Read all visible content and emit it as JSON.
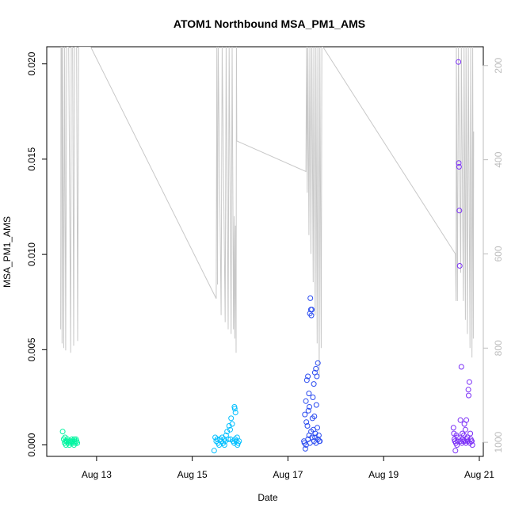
{
  "chart_data": {
    "type": "scatter",
    "title": "ATOM1 Northbound MSA_PM1_AMS",
    "xlabel": "Date",
    "ylabel": "MSA_PM1_AMS",
    "xlim": [
      "2019-08-11T23:00",
      "2019-08-21T02:00"
    ],
    "ylim": [
      -0.0006,
      0.0209
    ],
    "x_ticks": [
      "Aug 13",
      "Aug 15",
      "Aug 17",
      "Aug 19",
      "Aug 21"
    ],
    "x_tick_values": [
      "2019-08-13",
      "2019-08-15",
      "2019-08-17",
      "2019-08-19",
      "2019-08-21"
    ],
    "y_ticks": [
      "0.000",
      "0.005",
      "0.010",
      "0.015",
      "0.020"
    ],
    "y_tick_values": [
      0.0,
      0.005,
      0.01,
      0.015,
      0.02
    ],
    "y2_axis": {
      "ticks": [
        "200",
        "400",
        "600",
        "800",
        "1000"
      ],
      "tick_values": [
        200,
        400,
        600,
        800,
        1000
      ],
      "reversed": true,
      "range": [
        1030,
        160
      ],
      "color": "#bdbdbd"
    },
    "grid": false,
    "legend": "none",
    "series": [
      {
        "color": "#00f5a0",
        "points": [
          [
            "2019-08-12T07:00",
            0.0007
          ],
          [
            "2019-08-12T07:30",
            0.0003
          ],
          [
            "2019-08-12T08:00",
            0.0001
          ],
          [
            "2019-08-12T08:20",
            0.0002
          ],
          [
            "2019-08-12T08:40",
            0.0
          ],
          [
            "2019-08-12T09:00",
            0.0002
          ],
          [
            "2019-08-12T09:20",
            0.0003
          ],
          [
            "2019-08-12T09:40",
            0.0001
          ],
          [
            "2019-08-12T10:00",
            0.0002
          ],
          [
            "2019-08-12T10:20",
            0.0
          ],
          [
            "2019-08-12T10:40",
            0.0002
          ],
          [
            "2019-08-12T11:00",
            0.0001
          ],
          [
            "2019-08-12T11:20",
            0.0002
          ],
          [
            "2019-08-12T11:40",
            0.0003
          ],
          [
            "2019-08-12T12:00",
            0.0001
          ],
          [
            "2019-08-12T12:20",
            0.0002
          ],
          [
            "2019-08-12T12:40",
            0.0
          ],
          [
            "2019-08-12T13:00",
            0.0002
          ],
          [
            "2019-08-12T13:20",
            0.0001
          ],
          [
            "2019-08-12T13:40",
            0.0003
          ],
          [
            "2019-08-12T14:00",
            0.0002
          ],
          [
            "2019-08-12T14:20",
            0.0001
          ],
          [
            "2019-08-12T08:10",
            0.0004
          ],
          [
            "2019-08-12T12:50",
            0.0003
          ]
        ]
      },
      {
        "color": "#00bfff",
        "points": [
          [
            "2019-08-15T11:00",
            -0.0003
          ],
          [
            "2019-08-15T11:30",
            0.0004
          ],
          [
            "2019-08-15T12:00",
            0.0002
          ],
          [
            "2019-08-15T12:30",
            0.0003
          ],
          [
            "2019-08-15T13:00",
            0.0001
          ],
          [
            "2019-08-15T13:30",
            0.0
          ],
          [
            "2019-08-15T14:00",
            0.0003
          ],
          [
            "2019-08-15T14:30",
            0.0002
          ],
          [
            "2019-08-15T15:00",
            0.0004
          ],
          [
            "2019-08-15T15:30",
            0.0001
          ],
          [
            "2019-08-15T16:00",
            0.0003
          ],
          [
            "2019-08-15T16:30",
            0.0002
          ],
          [
            "2019-08-15T17:00",
            0.0005
          ],
          [
            "2019-08-15T17:30",
            0.0007
          ],
          [
            "2019-08-15T18:00",
            0.0003
          ],
          [
            "2019-08-15T18:30",
            0.001
          ],
          [
            "2019-08-15T19:00",
            0.0008
          ],
          [
            "2019-08-15T19:30",
            0.0014
          ],
          [
            "2019-08-15T20:00",
            0.0011
          ],
          [
            "2019-08-15T20:30",
            0.0002
          ],
          [
            "2019-08-15T21:00",
            0.0001
          ],
          [
            "2019-08-15T21:30",
            0.0003
          ],
          [
            "2019-08-15T22:00",
            0.0002
          ],
          [
            "2019-08-15T22:30",
            0.0004
          ],
          [
            "2019-08-15T23:00",
            0.0001
          ],
          [
            "2019-08-15T23:30",
            0.0002
          ],
          [
            "2019-08-15T21:10",
            0.002
          ],
          [
            "2019-08-15T21:20",
            0.0019
          ],
          [
            "2019-08-15T21:40",
            0.0017
          ],
          [
            "2019-08-15T16:10",
            0.0
          ],
          [
            "2019-08-15T19:10",
            0.0003
          ],
          [
            "2019-08-15T22:40",
            0.0
          ]
        ]
      },
      {
        "color": "#2a4bf0",
        "points": [
          [
            "2019-08-17T08:00",
            0.0002
          ],
          [
            "2019-08-17T08:30",
            0.0016
          ],
          [
            "2019-08-17T09:00",
            0.0023
          ],
          [
            "2019-08-17T09:30",
            0.0034
          ],
          [
            "2019-08-17T10:00",
            0.0036
          ],
          [
            "2019-08-17T10:30",
            0.0027
          ],
          [
            "2019-08-17T11:00",
            0.0069
          ],
          [
            "2019-08-17T11:15",
            0.0077
          ],
          [
            "2019-08-17T11:30",
            0.0071
          ],
          [
            "2019-08-17T11:45",
            0.0068
          ],
          [
            "2019-08-17T12:00",
            0.0071
          ],
          [
            "2019-08-17T12:30",
            0.0025
          ],
          [
            "2019-08-17T13:00",
            0.0032
          ],
          [
            "2019-08-17T13:30",
            0.0038
          ],
          [
            "2019-08-17T14:00",
            0.004
          ],
          [
            "2019-08-17T14:30",
            0.0036
          ],
          [
            "2019-08-17T15:00",
            0.0043
          ],
          [
            "2019-08-17T15:30",
            0.0005
          ],
          [
            "2019-08-17T16:00",
            0.0002
          ],
          [
            "2019-08-17T09:15",
            0.0012
          ],
          [
            "2019-08-17T09:45",
            0.001
          ],
          [
            "2019-08-17T10:15",
            0.0018
          ],
          [
            "2019-08-17T10:45",
            0.002
          ],
          [
            "2019-08-17T12:15",
            0.0014
          ],
          [
            "2019-08-17T12:45",
            0.0008
          ],
          [
            "2019-08-17T13:15",
            0.0015
          ],
          [
            "2019-08-17T13:45",
            0.0006
          ],
          [
            "2019-08-17T14:15",
            0.0021
          ],
          [
            "2019-08-17T14:45",
            0.0009
          ],
          [
            "2019-08-17T08:15",
            0.0001
          ],
          [
            "2019-08-17T08:45",
            -0.0002
          ],
          [
            "2019-08-17T09:05",
            0.0
          ],
          [
            "2019-08-17T10:05",
            0.0003
          ],
          [
            "2019-08-17T11:05",
            0.0001
          ],
          [
            "2019-08-17T12:05",
            0.0004
          ],
          [
            "2019-08-17T13:05",
            0.0002
          ],
          [
            "2019-08-17T14:05",
            0.0001
          ],
          [
            "2019-08-17T15:05",
            0.0003
          ],
          [
            "2019-08-17T15:45",
            0.0002
          ],
          [
            "2019-08-17T10:35",
            0.0005
          ],
          [
            "2019-08-17T11:35",
            0.0007
          ],
          [
            "2019-08-17T13:35",
            0.0004
          ]
        ]
      },
      {
        "color": "#7b2ff7",
        "points": [
          [
            "2019-08-20T11:00",
            0.0009
          ],
          [
            "2019-08-20T11:30",
            0.0003
          ],
          [
            "2019-08-20T12:00",
            -0.0003
          ],
          [
            "2019-08-20T12:30",
            0.0005
          ],
          [
            "2019-08-20T13:00",
            0.0002
          ],
          [
            "2019-08-20T13:30",
            0.0201
          ],
          [
            "2019-08-20T13:40",
            0.0148
          ],
          [
            "2019-08-20T13:50",
            0.0146
          ],
          [
            "2019-08-20T14:00",
            0.0123
          ],
          [
            "2019-08-20T14:10",
            0.0094
          ],
          [
            "2019-08-20T14:30",
            0.0013
          ],
          [
            "2019-08-20T15:00",
            0.0041
          ],
          [
            "2019-08-20T15:30",
            0.0006
          ],
          [
            "2019-08-20T16:00",
            0.0002
          ],
          [
            "2019-08-20T16:30",
            0.0011
          ],
          [
            "2019-08-20T17:00",
            0.0008
          ],
          [
            "2019-08-20T17:30",
            0.0013
          ],
          [
            "2019-08-20T18:00",
            0.0004
          ],
          [
            "2019-08-20T18:30",
            0.0029
          ],
          [
            "2019-08-20T18:40",
            0.0026
          ],
          [
            "2019-08-20T19:00",
            0.0033
          ],
          [
            "2019-08-20T19:30",
            0.0006
          ],
          [
            "2019-08-20T20:00",
            0.0002
          ],
          [
            "2019-08-20T20:30",
            0.0
          ],
          [
            "2019-08-20T12:15",
            0.0001
          ],
          [
            "2019-08-20T12:45",
            0.0
          ],
          [
            "2019-08-20T13:15",
            0.0004
          ],
          [
            "2019-08-20T14:45",
            0.0002
          ],
          [
            "2019-08-20T15:15",
            0.0001
          ],
          [
            "2019-08-20T15:45",
            0.0003
          ],
          [
            "2019-08-20T16:15",
            0.0005
          ],
          [
            "2019-08-20T16:45",
            0.0002
          ],
          [
            "2019-08-20T17:15",
            0.0001
          ],
          [
            "2019-08-20T17:45",
            0.0003
          ],
          [
            "2019-08-20T18:15",
            0.0002
          ],
          [
            "2019-08-20T19:15",
            0.0001
          ],
          [
            "2019-08-20T19:45",
            0.0003
          ],
          [
            "2019-08-20T20:15",
            0.0002
          ],
          [
            "2019-08-20T11:15",
            0.0006
          ],
          [
            "2019-08-20T11:45",
            0.0002
          ]
        ]
      }
    ],
    "secondary_line": {
      "color": "#c8c8c8",
      "axis": "y2",
      "points": [
        [
          "2019-08-12T06:00",
          760
        ],
        [
          "2019-08-12T06:10",
          160
        ],
        [
          "2019-08-12T06:30",
          160
        ],
        [
          "2019-08-12T06:40",
          790
        ],
        [
          "2019-08-12T07:00",
          160
        ],
        [
          "2019-08-12T07:30",
          800
        ],
        [
          "2019-08-12T08:00",
          160
        ],
        [
          "2019-08-12T08:30",
          805
        ],
        [
          "2019-08-12T09:00",
          160
        ],
        [
          "2019-08-12T10:00",
          160
        ],
        [
          "2019-08-12T11:00",
          810
        ],
        [
          "2019-08-12T11:20",
          160
        ],
        [
          "2019-08-12T12:00",
          160
        ],
        [
          "2019-08-12T12:30",
          795
        ],
        [
          "2019-08-12T13:00",
          160
        ],
        [
          "2019-08-12T14:00",
          160
        ],
        [
          "2019-08-12T14:30",
          785
        ],
        [
          "2019-08-12T15:00",
          160
        ],
        [
          "2019-08-12T21:00",
          160
        ],
        [
          "2019-08-15T12:00",
          695
        ],
        [
          "2019-08-15T12:20",
          160
        ],
        [
          "2019-08-15T12:40",
          665
        ],
        [
          "2019-08-15T13:00",
          160
        ],
        [
          "2019-08-15T14:30",
          730
        ],
        [
          "2019-08-15T15:00",
          160
        ],
        [
          "2019-08-15T16:30",
          745
        ],
        [
          "2019-08-15T17:00",
          160
        ],
        [
          "2019-08-15T18:00",
          760
        ],
        [
          "2019-08-15T18:30",
          160
        ],
        [
          "2019-08-15T19:30",
          770
        ],
        [
          "2019-08-15T20:00",
          160
        ],
        [
          "2019-08-15T20:40",
          760
        ],
        [
          "2019-08-15T21:00",
          520
        ],
        [
          "2019-08-15T21:20",
          780
        ],
        [
          "2019-08-15T21:40",
          540
        ],
        [
          "2019-08-15T22:00",
          810
        ],
        [
          "2019-08-15T22:10",
          160
        ],
        [
          "2019-08-15T22:20",
          360
        ],
        [
          "2019-08-17T09:00",
          425
        ],
        [
          "2019-08-17T09:20",
          160
        ],
        [
          "2019-08-17T09:40",
          470
        ],
        [
          "2019-08-17T10:00",
          160
        ],
        [
          "2019-08-17T10:30",
          560
        ],
        [
          "2019-08-17T11:00",
          160
        ],
        [
          "2019-08-17T11:30",
          600
        ],
        [
          "2019-08-17T12:00",
          160
        ],
        [
          "2019-08-17T12:40",
          660
        ],
        [
          "2019-08-17T13:00",
          160
        ],
        [
          "2019-08-17T13:40",
          730
        ],
        [
          "2019-08-17T14:00",
          160
        ],
        [
          "2019-08-17T14:40",
          790
        ],
        [
          "2019-08-17T15:00",
          160
        ],
        [
          "2019-08-17T15:40",
          860
        ],
        [
          "2019-08-17T16:00",
          160
        ],
        [
          "2019-08-17T16:40",
          800
        ],
        [
          "2019-08-17T17:00",
          160
        ],
        [
          "2019-08-17T17:30",
          160
        ],
        [
          "2019-08-20T12:00",
          600
        ],
        [
          "2019-08-20T12:20",
          700
        ],
        [
          "2019-08-20T12:30",
          160
        ],
        [
          "2019-08-20T13:00",
          700
        ],
        [
          "2019-08-20T13:30",
          160
        ],
        [
          "2019-08-20T14:40",
          640
        ],
        [
          "2019-08-20T15:00",
          160
        ],
        [
          "2019-08-20T16:00",
          700
        ],
        [
          "2019-08-20T16:20",
          160
        ],
        [
          "2019-08-20T17:00",
          740
        ],
        [
          "2019-08-20T17:20",
          160
        ],
        [
          "2019-08-20T18:00",
          770
        ],
        [
          "2019-08-20T18:30",
          160
        ],
        [
          "2019-08-20T19:20",
          800
        ],
        [
          "2019-08-20T19:40",
          160
        ],
        [
          "2019-08-20T20:20",
          820
        ],
        [
          "2019-08-20T20:40",
          160
        ],
        [
          "2019-08-20T21:00",
          780
        ],
        [
          "2019-08-20T21:10",
          340
        ]
      ]
    }
  }
}
